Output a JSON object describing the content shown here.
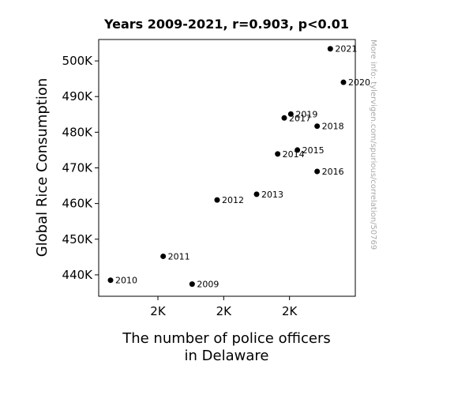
{
  "chart_data": {
    "type": "scatter",
    "title": "Years 2009-2021, r=0.903, p<0.01",
    "xlabel": [
      "The number of police officers",
      "in Delaware"
    ],
    "ylabel": "Global Rice Consumption",
    "watermark": "More info: tylervigen.com/spurious/correlation/50769",
    "xlim": [
      1.0,
      20.5
    ],
    "ylim": [
      434000,
      506000
    ],
    "x_ticks": [
      {
        "value": 5.5,
        "label": "2K"
      },
      {
        "value": 10.5,
        "label": "2K"
      },
      {
        "value": 15.5,
        "label": "2K"
      }
    ],
    "y_ticks": [
      {
        "value": 440000,
        "label": "440K"
      },
      {
        "value": 450000,
        "label": "450K"
      },
      {
        "value": 460000,
        "label": "460K"
      },
      {
        "value": 470000,
        "label": "470K"
      },
      {
        "value": 480000,
        "label": "480K"
      },
      {
        "value": 490000,
        "label": "490K"
      },
      {
        "value": 500000,
        "label": "500K"
      }
    ],
    "point_color": "#000000",
    "points": [
      {
        "label": "2009",
        "x": 8.1,
        "y": 437400
      },
      {
        "label": "2010",
        "x": 1.9,
        "y": 438500
      },
      {
        "label": "2011",
        "x": 5.9,
        "y": 445200
      },
      {
        "label": "2012",
        "x": 10.0,
        "y": 461000
      },
      {
        "label": "2013",
        "x": 13.0,
        "y": 462600
      },
      {
        "label": "2014",
        "x": 14.6,
        "y": 473900
      },
      {
        "label": "2015",
        "x": 16.1,
        "y": 475000
      },
      {
        "label": "2016",
        "x": 17.6,
        "y": 469000
      },
      {
        "label": "2017",
        "x": 15.1,
        "y": 484000
      },
      {
        "label": "2018",
        "x": 17.6,
        "y": 481700
      },
      {
        "label": "2019",
        "x": 15.6,
        "y": 485100
      },
      {
        "label": "2020",
        "x": 19.6,
        "y": 494000
      },
      {
        "label": "2021",
        "x": 18.6,
        "y": 503400
      }
    ]
  }
}
